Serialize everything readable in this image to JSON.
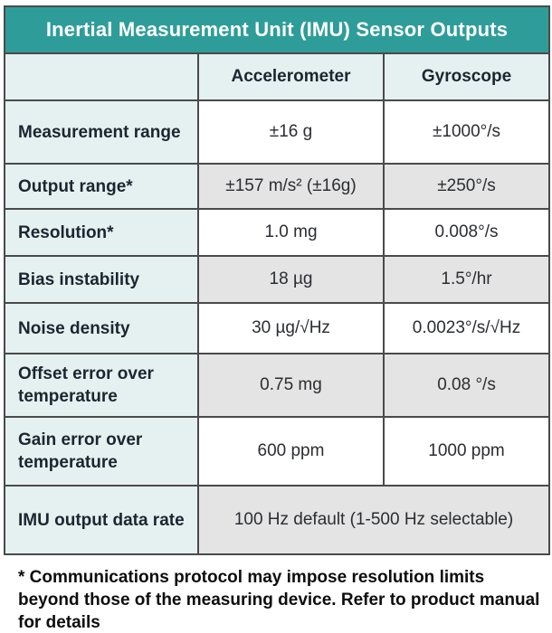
{
  "title": "Inertial Measurement Unit (IMU) Sensor Outputs",
  "table": {
    "columns": [
      "",
      "Accelerometer",
      "Gyroscope"
    ],
    "rows": [
      {
        "label": "Measurement range",
        "accelerometer": "±16 g",
        "gyroscope": "±1000°/s"
      },
      {
        "label": "Output range*",
        "accelerometer": "±157 m/s² (±16g)",
        "gyroscope": "±250°/s"
      },
      {
        "label": "Resolution*",
        "accelerometer": "1.0 mg",
        "gyroscope": "0.008°/s"
      },
      {
        "label": "Bias instability",
        "accelerometer": "18 µg",
        "gyroscope": "1.5°/hr"
      },
      {
        "label": "Noise density",
        "accelerometer": "30 µg/√Hz",
        "gyroscope": "0.0023°/s/√Hz"
      },
      {
        "label": "Offset error over temperature",
        "accelerometer": "0.75 mg",
        "gyroscope": "0.08 °/s"
      },
      {
        "label": "Gain error over temperature",
        "accelerometer": "600 ppm",
        "gyroscope": "1000 ppm"
      },
      {
        "label": "IMU output data rate",
        "value": "100 Hz default (1-500 Hz selectable)"
      }
    ]
  },
  "footnote": "* Communications protocol may impose resolution limits beyond those of the measuring device. Refer to product manual for details",
  "colors": {
    "header_teal": "#2e9d9a",
    "label_mint": "#e5f1f0",
    "row_gray": "#e4e4e4",
    "row_white": "#ffffff",
    "border": "#4a4a4a",
    "title_text": "#ffffff",
    "label_text": "#1c2531",
    "value_text": "#2b2d31"
  }
}
